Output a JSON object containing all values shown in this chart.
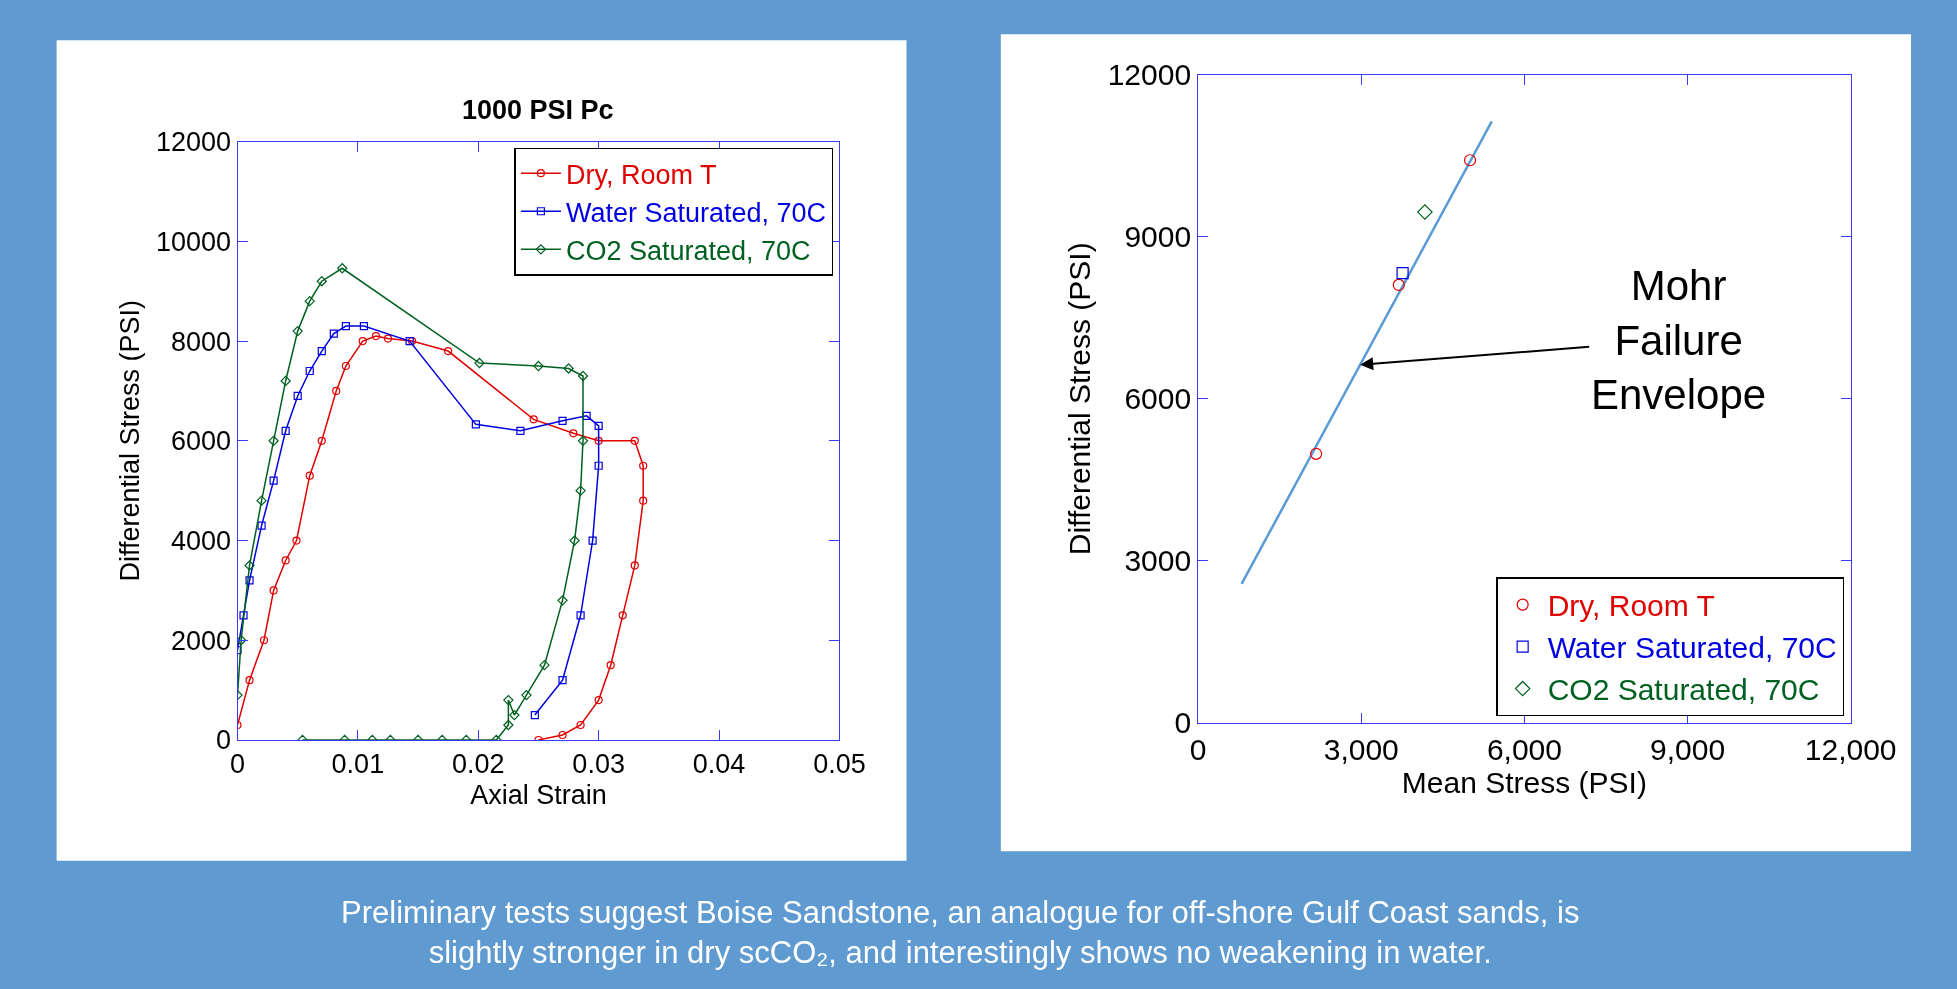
{
  "chart_data": [
    {
      "type": "line",
      "title": "1000 PSI Pc",
      "xlabel": "Axial Strain",
      "ylabel": "Differential Stress (PSI)",
      "xlim": [
        0,
        0.05
      ],
      "xticks": [
        0,
        0.01,
        0.02,
        0.03,
        0.04,
        0.05
      ],
      "ylim": [
        0,
        12000
      ],
      "yticks": [
        0,
        2000,
        4000,
        6000,
        8000,
        10000,
        12000
      ],
      "grid": false,
      "legend": "top right",
      "series": [
        {
          "name": "Dry, Room T",
          "color": "#e00000",
          "marker": "circle",
          "x": [
            0.0,
            0.001,
            0.0022,
            0.003,
            0.004,
            0.0049,
            0.006,
            0.007,
            0.0082,
            0.009,
            0.0104,
            0.0115,
            0.0125,
            0.0145,
            0.0175,
            0.0246,
            0.0279,
            0.03,
            0.033,
            0.0337,
            0.0337,
            0.033,
            0.032,
            0.031,
            0.03,
            0.0285,
            0.027,
            0.025
          ],
          "values": [
            300,
            1200,
            2000,
            3000,
            3600,
            4000,
            5300,
            6000,
            7000,
            7500,
            8000,
            8100,
            8050,
            8000,
            7800,
            6430,
            6150,
            6000,
            6000,
            5500,
            4800,
            3500,
            2500,
            1500,
            800,
            300,
            100,
            0
          ]
        },
        {
          "name": "Water Saturated, 70C",
          "color": "#0000e0",
          "marker": "square",
          "x": [
            0.0,
            0.0005,
            0.001,
            0.002,
            0.003,
            0.004,
            0.005,
            0.006,
            0.007,
            0.008,
            0.009,
            0.0105,
            0.0143,
            0.0198,
            0.0235,
            0.027,
            0.029,
            0.03,
            0.03,
            0.0295,
            0.0285,
            0.027,
            0.0247
          ],
          "values": [
            1800,
            2500,
            3200,
            4300,
            5200,
            6200,
            6900,
            7400,
            7800,
            8150,
            8300,
            8300,
            8000,
            6330,
            6200,
            6400,
            6500,
            6300,
            5500,
            4000,
            2500,
            1200,
            500
          ]
        },
        {
          "name": "CO2 Saturated, 70C",
          "color": "#006020",
          "marker": "diamond",
          "x": [
            0.0,
            0.0003,
            0.001,
            0.002,
            0.003,
            0.004,
            0.005,
            0.006,
            0.007,
            0.0087,
            0.0201,
            0.025,
            0.0275,
            0.0287,
            0.0287,
            0.0285,
            0.028,
            0.027,
            0.0255,
            0.024,
            0.023,
            0.0225,
            0.0225,
            0.0215,
            0.019,
            0.017,
            0.015,
            0.0127,
            0.0112,
            0.0089,
            0.0054
          ],
          "values": [
            900,
            2000,
            3500,
            4800,
            6000,
            7200,
            8200,
            8800,
            9200,
            9460,
            7560,
            7500,
            7450,
            7300,
            6000,
            5000,
            4000,
            2800,
            1500,
            900,
            500,
            800,
            300,
            0,
            0,
            0,
            0,
            0,
            0,
            0,
            0
          ]
        }
      ],
      "annotations": [
        "Preliminary tests suggest Boise Sandstone, an analogue for off-shore Gulf Coast sands, is\nslightly stronger in dry scCO₂, and interestingly shows no weakening in water."
      ]
    },
    {
      "type": "scatter",
      "xlabel": "Mean Stress (PSI)",
      "ylabel": "Differential Stress (PSI)",
      "xlim": [
        0,
        12000
      ],
      "xticks": [
        0,
        {
          "value": 3000,
          "label": "3,000"
        },
        {
          "value": 6000,
          "label": "6,000"
        },
        {
          "value": 9000,
          "label": "9,000"
        },
        {
          "value": 12000,
          "label": "12,000"
        }
      ],
      "ylim": [
        0,
        12000
      ],
      "yticks": [
        0,
        3000,
        6000,
        9000,
        12000
      ],
      "grid": false,
      "legend": "bottom right",
      "series": [
        {
          "name": "Dry, Room T",
          "color": "#e00000",
          "marker": "circle",
          "x": [
            2170,
            3690,
            5000
          ],
          "values": [
            4980,
            8110,
            10420
          ]
        },
        {
          "name": "Water Saturated, 70C",
          "color": "#0000e0",
          "marker": "square",
          "x": [
            3760
          ],
          "values": [
            8330
          ]
        },
        {
          "name": "CO2 Saturated, 70C",
          "color": "#006020",
          "marker": "diamond",
          "x": [
            4170
          ],
          "values": [
            9460
          ]
        },
        {
          "type": "line",
          "color": "#5b9bd5",
          "marker": "none",
          "x": [
            800,
            5400
          ],
          "values": [
            2570,
            11140
          ]
        }
      ],
      "annotations": [
        {
          "text": "Mohr\nFailure\nEnvelope",
          "x": 2980,
          "y": 6630
        }
      ]
    }
  ]
}
